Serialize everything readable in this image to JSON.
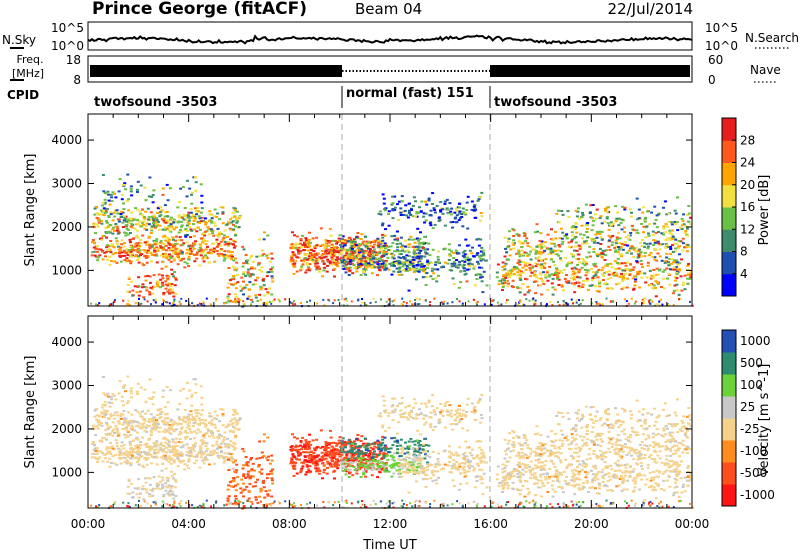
{
  "header": {
    "station": "Prince George (fitACF)",
    "beam": "Beam 04",
    "date": "22/Jul/2014"
  },
  "strip_labels": {
    "nsky": "N.Sky",
    "nsky_ticks": [
      "10^5",
      "10^0"
    ],
    "nsearch": "N.Search",
    "nsearch_ticks": [
      "10^5",
      "10^0"
    ],
    "freq_line1": "Freq.",
    "freq_line2": "[MHz]",
    "freq_ticks": [
      "18",
      "8"
    ],
    "nave": "Nave",
    "nave_ticks": [
      "60",
      "0"
    ],
    "cpid": "CPID"
  },
  "cpid_segments": [
    {
      "label": "twofsound -3503",
      "start_hour": 0,
      "end_hour": 10
    },
    {
      "label": "normal (fast) 151",
      "start_hour": 10,
      "end_hour": 16
    },
    {
      "label": "twofsound -3503",
      "start_hour": 16,
      "end_hour": 24
    }
  ],
  "colors": {
    "power": [
      "#0000ff",
      "#1e4fb0",
      "#3d8d6c",
      "#6abf46",
      "#f0e040",
      "#ffa500",
      "#ff5a1e",
      "#e61e1e"
    ],
    "velocity": [
      "#ff1414",
      "#ff4e1e",
      "#ff8c1e",
      "#f5d28c",
      "#c8c8c8",
      "#6cd23a",
      "#2e8c6e",
      "#2450b4"
    ],
    "frame": "#000000"
  },
  "chart_data": [
    {
      "type": "heatmap",
      "ylabel": "Slant Range [km]",
      "xlim": [
        0,
        24
      ],
      "ylim": [
        180,
        4600
      ],
      "y_ticks": [
        "4000",
        "3000",
        "2000",
        "1000"
      ],
      "colorbar_label": "Power [dB]",
      "colorbar_ticks": [
        "28",
        "24",
        "20",
        "16",
        "12",
        "8",
        "4"
      ],
      "colorbar_range": [
        0,
        32
      ]
    },
    {
      "type": "heatmap",
      "xlabel": "Time UT",
      "x_ticks": [
        "00:00",
        "04:00",
        "08:00",
        "12:00",
        "16:00",
        "20:00",
        "00:00"
      ],
      "ylabel": "Slant Range [km]",
      "xlim": [
        0,
        24
      ],
      "ylim": [
        180,
        4600
      ],
      "y_ticks": [
        "4000",
        "3000",
        "2000",
        "1000"
      ],
      "colorbar_label": "Velocity [m s^-1]",
      "colorbar_ticks": [
        "1000",
        "500",
        "100",
        "25",
        "-25",
        "-100",
        "-500",
        "-1000"
      ]
    }
  ]
}
